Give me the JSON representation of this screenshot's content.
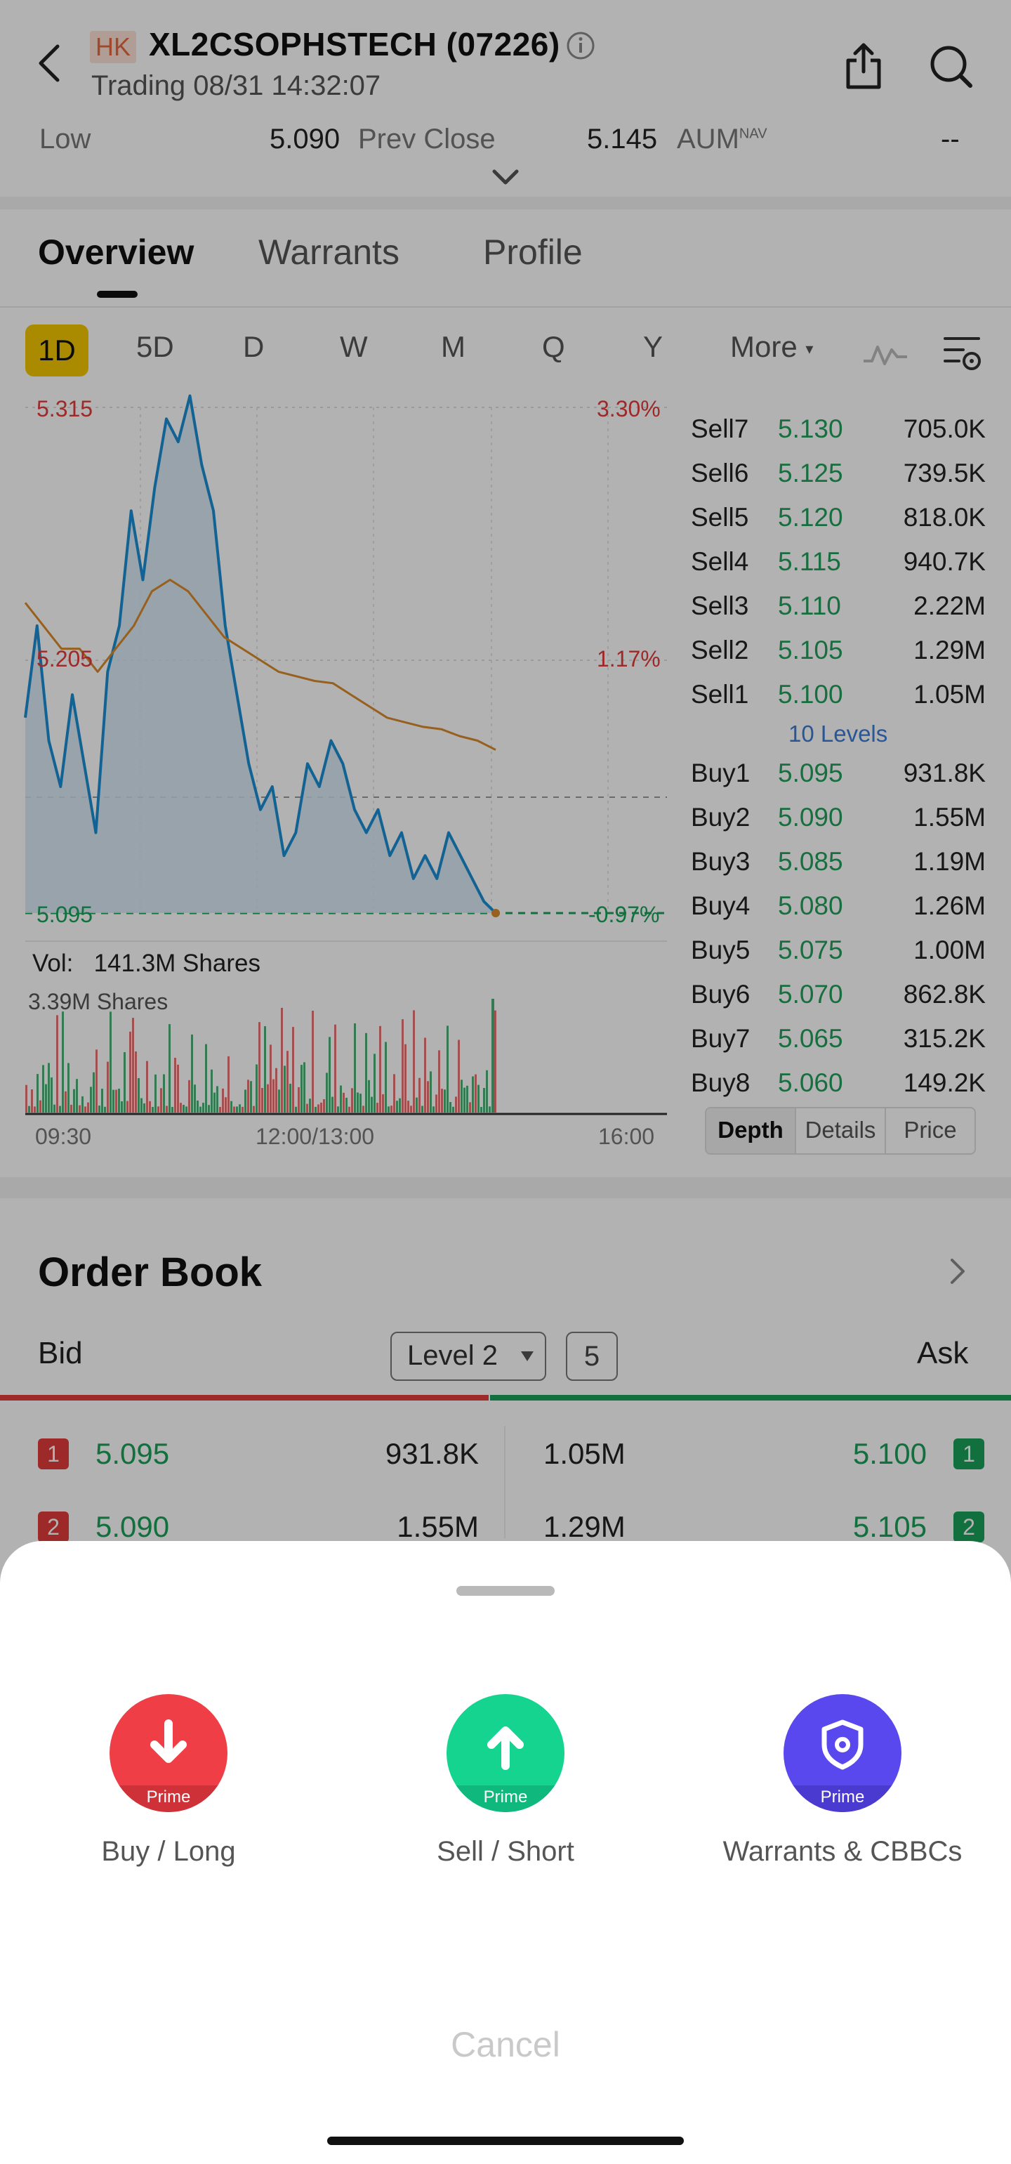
{
  "header": {
    "market": "HK",
    "title": "XL2CSOPHSTECH (07226)",
    "status": "Trading 08/31 14:32:07"
  },
  "summary": {
    "low_label": "Low",
    "low_value": "5.090",
    "prev_close_label": "Prev Close",
    "prev_close_value": "5.145",
    "aum_label": "AUM",
    "aum_sup": "NAV",
    "aum_value": "--"
  },
  "tabs": [
    "Overview",
    "Warrants",
    "Profile"
  ],
  "periods": [
    "1D",
    "5D",
    "D",
    "W",
    "M",
    "Q",
    "Y",
    "More"
  ],
  "chart_data": {
    "type": "line",
    "price_high_label": "5.315",
    "price_mid_label": "5.205",
    "price_low_label": "5.095",
    "pct_high_label": "3.30%",
    "pct_mid_label": "1.17%",
    "pct_low_label": "-0.97%",
    "volume_label": "Vol:",
    "volume_value": "141.3M Shares",
    "volume_max_label": "3.39M Shares",
    "x_labels": [
      "09:30",
      "12:00/13:00",
      "16:00"
    ],
    "y_range": [
      5.095,
      5.315
    ],
    "series": [
      {
        "name": "",
        "color": "#1a8ed3",
        "values": [
          5.18,
          5.22,
          5.17,
          5.15,
          5.19,
          5.16,
          5.13,
          5.2,
          5.22,
          5.27,
          5.24,
          5.28,
          5.31,
          5.3,
          5.32,
          5.29,
          5.27,
          5.22,
          5.19,
          5.16,
          5.14,
          5.15,
          5.12,
          5.13,
          5.16,
          5.15,
          5.17,
          5.16,
          5.14,
          5.13,
          5.14,
          5.12,
          5.13,
          5.11,
          5.12,
          5.11,
          5.13,
          5.12,
          5.11,
          5.1,
          5.095
        ]
      },
      {
        "name": "",
        "color": "#d98a2b",
        "values": [
          5.23,
          5.22,
          5.21,
          5.21,
          5.2,
          5.21,
          5.22,
          5.235,
          5.24,
          5.235,
          5.225,
          5.215,
          5.21,
          5.205,
          5.2,
          5.198,
          5.196,
          5.195,
          5.19,
          5.185,
          5.18,
          5.178,
          5.176,
          5.175,
          5.172,
          5.17,
          5.166
        ]
      }
    ]
  },
  "depth": {
    "sells": [
      {
        "label": "Sell7",
        "price": "5.130",
        "volume": "705.0K"
      },
      {
        "label": "Sell6",
        "price": "5.125",
        "volume": "739.5K"
      },
      {
        "label": "Sell5",
        "price": "5.120",
        "volume": "818.0K"
      },
      {
        "label": "Sell4",
        "price": "5.115",
        "volume": "940.7K"
      },
      {
        "label": "Sell3",
        "price": "5.110",
        "volume": "2.22M"
      },
      {
        "label": "Sell2",
        "price": "5.105",
        "volume": "1.29M"
      },
      {
        "label": "Sell1",
        "price": "5.100",
        "volume": "1.05M"
      }
    ],
    "levels_label": "10 Levels",
    "buys": [
      {
        "label": "Buy1",
        "price": "5.095",
        "volume": "931.8K"
      },
      {
        "label": "Buy2",
        "price": "5.090",
        "volume": "1.55M"
      },
      {
        "label": "Buy3",
        "price": "5.085",
        "volume": "1.19M"
      },
      {
        "label": "Buy4",
        "price": "5.080",
        "volume": "1.26M"
      },
      {
        "label": "Buy5",
        "price": "5.075",
        "volume": "1.00M"
      },
      {
        "label": "Buy6",
        "price": "5.070",
        "volume": "862.8K"
      },
      {
        "label": "Buy7",
        "price": "5.065",
        "volume": "315.2K"
      },
      {
        "label": "Buy8",
        "price": "5.060",
        "volume": "149.2K"
      }
    ],
    "tabs": [
      "Depth",
      "Details",
      "Price"
    ]
  },
  "order_book": {
    "title": "Order Book",
    "bid_label": "Bid",
    "ask_label": "Ask",
    "level_select": "Level 2",
    "depth_count": "5",
    "rows": [
      {
        "bid_num": "1",
        "bid_price": "5.095",
        "bid_vol": "931.8K",
        "ask_vol": "1.05M",
        "ask_price": "5.100",
        "ask_num": "1"
      },
      {
        "bid_num": "2",
        "bid_price": "5.090",
        "bid_vol": "1.55M",
        "ask_vol": "1.29M",
        "ask_price": "5.105",
        "ask_num": "2"
      }
    ]
  },
  "sheet": {
    "badge": "Prime",
    "actions": [
      "Buy / Long",
      "Sell / Short",
      "Warrants & CBBCs"
    ],
    "cancel": "Cancel"
  },
  "colors": {
    "up": "#e23b3b",
    "down": "#19a15a",
    "accent": "#f4c800",
    "buy_long": "#ef3e46",
    "sell_short": "#14d490",
    "warrants": "#5a48ef"
  }
}
